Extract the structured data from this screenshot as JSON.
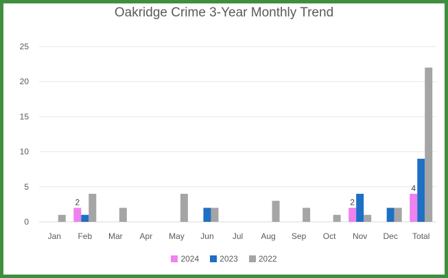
{
  "chart_data": {
    "type": "bar",
    "title": "Oakridge Crime 3-Year Monthly Trend",
    "xlabel": "",
    "ylabel": "",
    "categories": [
      "Jan",
      "Feb",
      "Mar",
      "Apr",
      "May",
      "Jun",
      "Jul",
      "Aug",
      "Sep",
      "Oct",
      "Nov",
      "Dec",
      "Total"
    ],
    "series": [
      {
        "name": "2024",
        "color": "#ee82ee",
        "values": [
          0,
          2,
          0,
          0,
          0,
          0,
          0,
          0,
          0,
          0,
          2,
          0,
          4
        ]
      },
      {
        "name": "2023",
        "color": "#1f6fc4",
        "values": [
          0,
          1,
          0,
          0,
          0,
          2,
          0,
          0,
          0,
          0,
          4,
          2,
          9
        ]
      },
      {
        "name": "2022",
        "color": "#a5a5a5",
        "values": [
          1,
          4,
          2,
          0,
          4,
          2,
          0,
          3,
          2,
          1,
          1,
          2,
          22
        ]
      }
    ],
    "data_labels": [
      {
        "series": "2024",
        "category": "Feb",
        "text": "2"
      },
      {
        "series": "2024",
        "category": "Nov",
        "text": "2"
      },
      {
        "series": "2024",
        "category": "Total",
        "text": "4"
      }
    ],
    "ylim": [
      0,
      25
    ],
    "yticks": [
      0,
      5,
      10,
      15,
      20,
      25
    ],
    "grid": true,
    "legend_position": "bottom"
  }
}
